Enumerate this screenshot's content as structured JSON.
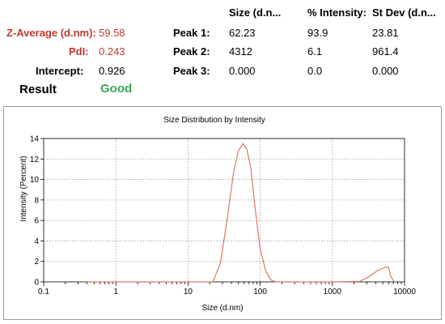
{
  "summary": {
    "z_average_label": "Z-Average (d.nm):",
    "z_average_value": "59.58",
    "pdi_label": "PdI:",
    "pdi_value": "0.243",
    "intercept_label": "Intercept:",
    "intercept_value": "0.926",
    "result_label": "Result",
    "result_value": "Good"
  },
  "peaks": {
    "headers": [
      "Size (d.n...",
      "% Intensity:",
      "St Dev (d.n..."
    ],
    "rows": [
      {
        "label": "Peak 1:",
        "size": "62.23",
        "intensity": "93.9",
        "stdev": "23.81"
      },
      {
        "label": "Peak 2:",
        "size": "4312",
        "intensity": "6.1",
        "stdev": "961.4"
      },
      {
        "label": "Peak 3:",
        "size": "0.000",
        "intensity": "0.0",
        "stdev": "0.000"
      }
    ]
  },
  "colors": {
    "label_red": "#c0392b",
    "good_green": "#3aa655",
    "curve": "#d9786a"
  },
  "chart_data": {
    "type": "line",
    "title": "Size Distribution by Intensity",
    "xlabel": "Size (d.nm)",
    "ylabel": "Intensity (Percent)",
    "x_scale": "log",
    "xlim": [
      0.1,
      10000
    ],
    "ylim": [
      0,
      14
    ],
    "x_ticks": [
      0.1,
      1,
      10,
      100,
      1000,
      10000
    ],
    "x_tick_labels": [
      "0.1",
      "1",
      "10",
      "100",
      "1000",
      "10000"
    ],
    "y_ticks": [
      0,
      2,
      4,
      6,
      8,
      10,
      12,
      14
    ],
    "y_tick_labels": [
      "0",
      "2",
      "4",
      "6",
      "8",
      "10",
      "12",
      "14"
    ],
    "grid": true,
    "series": [
      {
        "x": [
          0.4,
          15,
          22,
          28,
          35,
          43,
          50,
          58,
          65,
          74,
          84,
          100,
          120,
          140,
          165,
          200,
          1000,
          2400,
          3200,
          4200,
          5300,
          6000,
          6400,
          7200
        ],
        "y": [
          0,
          0,
          0,
          1.8,
          6.2,
          10.8,
          12.8,
          13.5,
          13.0,
          11.2,
          7.5,
          3.2,
          1.0,
          0.2,
          0,
          0,
          0,
          0.05,
          0.5,
          1.1,
          1.4,
          1.45,
          0.6,
          0
        ]
      }
    ]
  }
}
